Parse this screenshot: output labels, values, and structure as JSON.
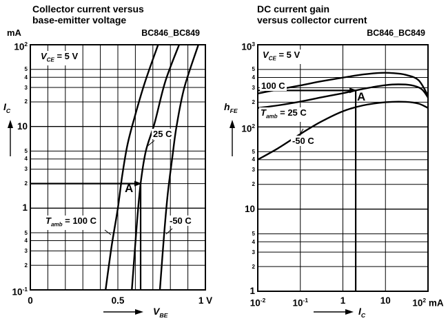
{
  "colors": {
    "ink": "#000000",
    "background": "#ffffff"
  },
  "left": {
    "title1": "Collector current versus",
    "title2": "base-emitter voltage",
    "part": "BC846_BC849",
    "y_unit": "mA",
    "y_symbol": {
      "sym": "I",
      "sub": "C"
    },
    "x_symbol": {
      "sym": "V",
      "sub": "BE"
    },
    "cond": {
      "sym": "V",
      "sub": "CE",
      "rest": " = 5 V"
    },
    "curve_labels": {
      "c100": {
        "sym": "T",
        "sub": "amb",
        "rest": " = 100 C"
      },
      "c25": "25 C",
      "cm50": "-50 C"
    },
    "marker": "A",
    "x_ticks": [
      {
        "v": 0,
        "base": "0"
      },
      {
        "v": 0.5,
        "base": "0.5"
      },
      {
        "v": 1,
        "base": "1",
        "suffix": " V"
      }
    ],
    "y_majors": [
      {
        "v": 100,
        "base": "10",
        "sup": "2"
      },
      {
        "v": 10,
        "base": "10"
      },
      {
        "v": 1,
        "base": "1"
      },
      {
        "v": 0.1,
        "base": "10",
        "sup": "-1"
      }
    ],
    "y_minor_digits": [
      5,
      4,
      3,
      2
    ]
  },
  "right": {
    "title1": "DC current gain",
    "title2": "versus collector current",
    "part": "BC846_BC849",
    "y_symbol": {
      "sym": "h",
      "sub": "FE"
    },
    "x_symbol": {
      "sym": "I",
      "sub": "C"
    },
    "cond": {
      "sym": "V",
      "sub": "CE",
      "rest": " = 5 V"
    },
    "curve_labels": {
      "c100": "100 C",
      "c25": {
        "sym": "T",
        "sub": "amb",
        "rest": " = 25 C"
      },
      "cm50": "-50 C"
    },
    "marker": "A",
    "x_ticks": [
      {
        "v": 0.01,
        "base": "10",
        "sup": "-2"
      },
      {
        "v": 0.1,
        "base": "10",
        "sup": "-1"
      },
      {
        "v": 1,
        "base": "1"
      },
      {
        "v": 10,
        "base": "10"
      },
      {
        "v": 100,
        "base": "10",
        "sup": "2",
        "suffix": " mA"
      }
    ],
    "y_majors": [
      {
        "v": 1000,
        "base": "10",
        "sup": "3"
      },
      {
        "v": 100,
        "base": "10",
        "sup": "2"
      },
      {
        "v": 10,
        "base": "10"
      },
      {
        "v": 1,
        "base": "1"
      }
    ],
    "y_minor_digits": [
      5,
      4,
      3,
      2
    ]
  },
  "chart_data": [
    {
      "type": "line",
      "title": "Collector current versus base-emitter voltage",
      "part_number": "BC846_BC849",
      "condition": "VCE = 5 V",
      "xlabel": "VBE",
      "x_unit": "V",
      "ylabel": "IC",
      "y_unit": "mA",
      "xscale": "linear",
      "yscale": "log",
      "xlim": [
        0,
        1
      ],
      "ylim": [
        0.1,
        100
      ],
      "grid": true,
      "x_grid_step": 0.1,
      "series": [
        {
          "name": "Tamb = 100 C",
          "x": [
            0.43,
            0.465,
            0.5,
            0.525,
            0.555,
            0.6,
            0.655,
            0.73
          ],
          "y": [
            0.1,
            0.35,
            1,
            2.5,
            6,
            14,
            35,
            100
          ]
        },
        {
          "name": "25 C",
          "x": [
            0.58,
            0.61,
            0.63,
            0.66,
            0.71,
            0.77,
            0.85
          ],
          "y": [
            0.1,
            0.7,
            2,
            5,
            11,
            35,
            100
          ]
        },
        {
          "name": "-50 C",
          "x": [
            0.74,
            0.765,
            0.785,
            0.81,
            0.835,
            0.88,
            0.96
          ],
          "y": [
            0.1,
            0.5,
            1.5,
            4,
            10,
            30,
            100
          ]
        }
      ],
      "marker_point": {
        "label": "A",
        "x": 0.63,
        "y": 2
      }
    },
    {
      "type": "line",
      "title": "DC current gain versus collector current",
      "part_number": "BC846_BC849",
      "condition": "VCE = 5 V",
      "xlabel": "IC",
      "x_unit": "mA",
      "ylabel": "hFE",
      "xscale": "log",
      "yscale": "log",
      "xlim": [
        0.01,
        100
      ],
      "ylim": [
        1,
        1000
      ],
      "grid": true,
      "series": [
        {
          "name": "100 C",
          "x": [
            0.01,
            0.03,
            0.1,
            0.3,
            1,
            3,
            8,
            15,
            30,
            60,
            100
          ],
          "y": [
            255,
            285,
            320,
            358,
            398,
            435,
            455,
            452,
            430,
            370,
            240
          ]
        },
        {
          "name": "Tamb = 25 C",
          "x": [
            0.01,
            0.03,
            0.1,
            0.3,
            1,
            2,
            5,
            10,
            20,
            40,
            70,
            100
          ],
          "y": [
            170,
            183,
            203,
            228,
            257,
            278,
            305,
            322,
            330,
            322,
            290,
            228
          ]
        },
        {
          "name": "-50 C",
          "x": [
            0.01,
            0.03,
            0.1,
            0.3,
            1,
            3,
            10,
            30,
            60,
            100
          ],
          "y": [
            40,
            55,
            82,
            115,
            155,
            183,
            200,
            202,
            192,
            170
          ]
        }
      ],
      "marker_point": {
        "label": "A",
        "x": 2,
        "y": 278
      }
    }
  ]
}
